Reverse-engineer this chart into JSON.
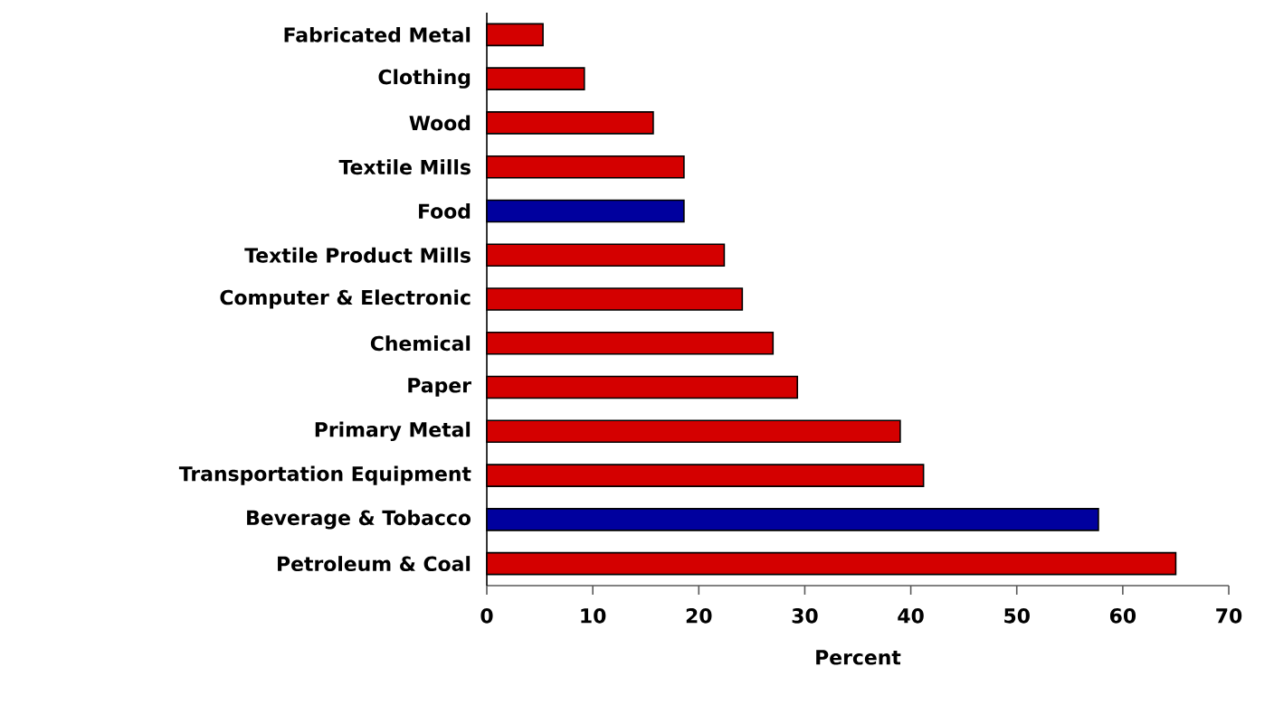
{
  "chart_data": {
    "type": "bar",
    "orientation": "horizontal",
    "xlabel": "Percent",
    "categories": [
      "Fabricated Metal",
      "Clothing",
      "Wood",
      "Textile Mills",
      "Food",
      "Textile Product Mills",
      "Computer & Electronic",
      "Chemical",
      "Paper",
      "Primary Metal",
      "Transportation Equipment",
      "Beverage & Tobacco",
      "Petroleum & Coal"
    ],
    "values": [
      5.3,
      9.2,
      15.7,
      18.6,
      18.6,
      22.4,
      24.1,
      27.0,
      29.3,
      39.0,
      41.2,
      57.7,
      65.0
    ],
    "colors": [
      "#d40000",
      "#d40000",
      "#d40000",
      "#d40000",
      "#00009e",
      "#d40000",
      "#d40000",
      "#d40000",
      "#d40000",
      "#d40000",
      "#d40000",
      "#00009e",
      "#d40000"
    ],
    "xlim": [
      0,
      70
    ],
    "xticks": [
      0,
      10,
      20,
      30,
      40,
      50,
      60,
      70
    ]
  }
}
